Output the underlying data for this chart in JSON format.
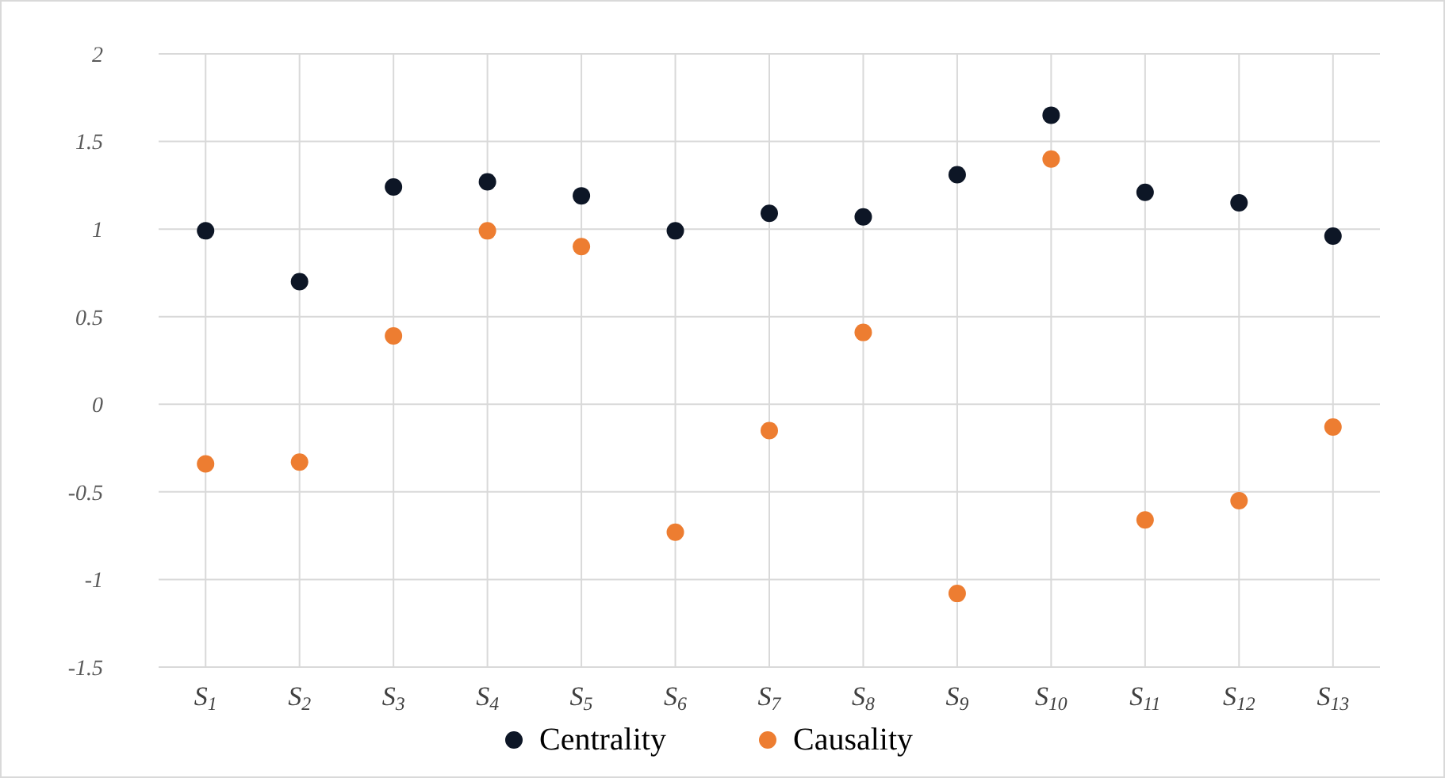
{
  "chart_data": {
    "type": "scatter",
    "categories": [
      "S$_{1}$",
      "S$_{2}$",
      "S$_{3}$",
      "S$_{4}$",
      "S$_{5}$",
      "S$_{6}$",
      "S$_{7}$",
      "S$_{8}$",
      "S$_{9}$",
      "S$_{10}$",
      "S$_{11}$",
      "S$_{12}$",
      "S$_{13}$"
    ],
    "series": [
      {
        "name": "Centrality",
        "color": "#0d1626",
        "values": [
          0.99,
          0.7,
          1.24,
          1.27,
          1.19,
          0.99,
          1.09,
          1.07,
          1.31,
          1.65,
          1.21,
          1.15,
          0.96
        ]
      },
      {
        "name": "Causality",
        "color": "#ed7d31",
        "values": [
          -0.34,
          -0.33,
          0.39,
          0.99,
          0.9,
          -0.73,
          -0.15,
          0.41,
          -1.08,
          1.4,
          -0.66,
          -0.55,
          -0.13
        ]
      }
    ],
    "ylim": [
      -1.5,
      2
    ],
    "yticks": [
      -1.5,
      -1,
      -0.5,
      0,
      0.5,
      1,
      1.5,
      2
    ],
    "grid": true,
    "legend": "bottom",
    "marker": "circle"
  }
}
